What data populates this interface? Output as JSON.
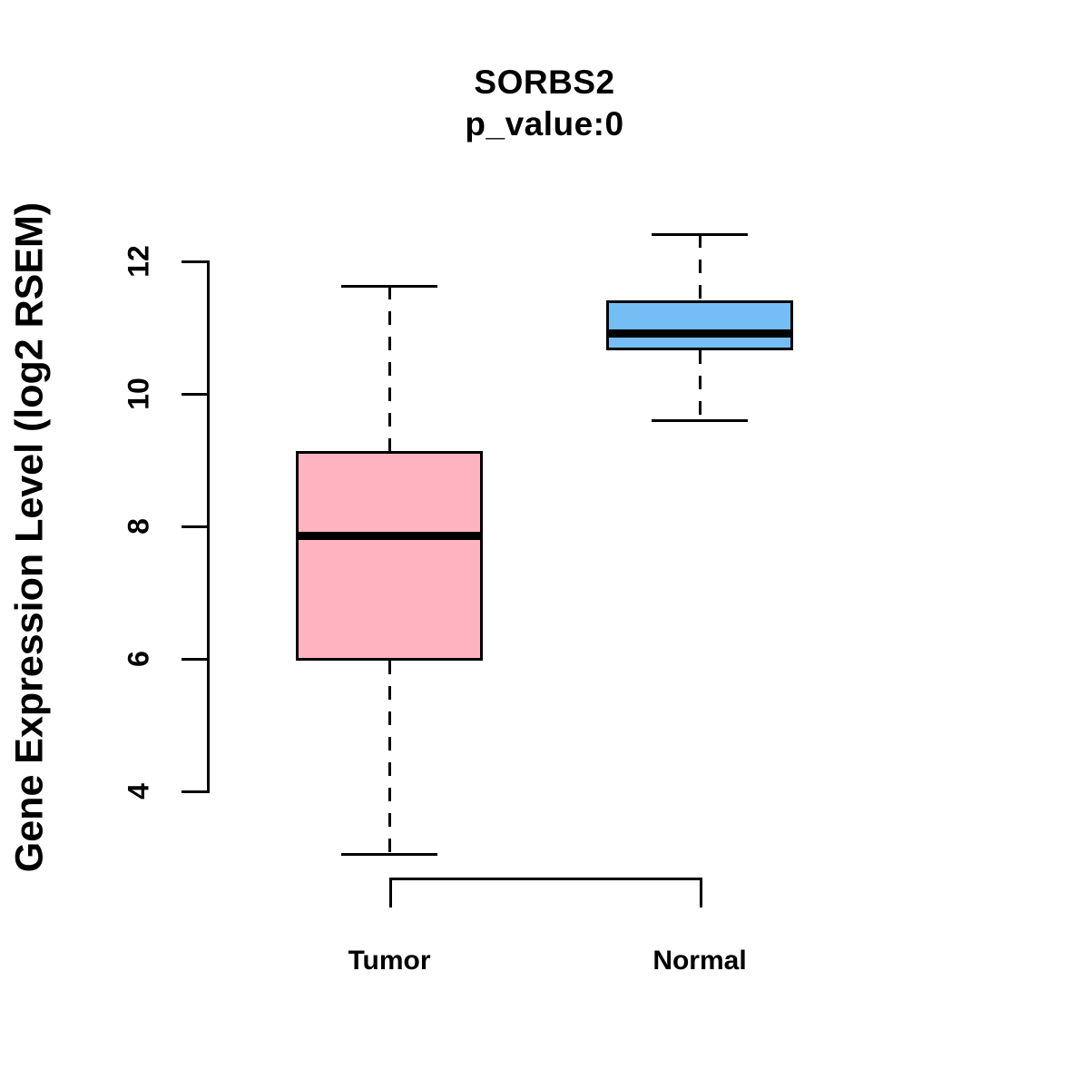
{
  "chart_data": {
    "type": "boxplot",
    "title": "SORBS2",
    "subtitle": "p_value:0",
    "ylabel": "Gene Expression Level (log2 RSEM)",
    "xlabel": "",
    "categories": [
      "Tumor",
      "Normal"
    ],
    "yticks": [
      4,
      6,
      8,
      10,
      12
    ],
    "ylim": [
      2.9,
      12.6
    ],
    "grid": false,
    "legend_position": "none",
    "whisker_style": "dashed",
    "box_border_color": "#000000",
    "median_color": "#000000",
    "series": [
      {
        "name": "Tumor",
        "fill_color": "#FFB3C1",
        "min": 3.05,
        "q1": 5.97,
        "median": 7.86,
        "q3": 9.14,
        "max": 11.63
      },
      {
        "name": "Normal",
        "fill_color": "#74BEF5",
        "min": 9.6,
        "q1": 10.66,
        "median": 10.92,
        "q3": 11.41,
        "max": 12.41
      }
    ]
  }
}
